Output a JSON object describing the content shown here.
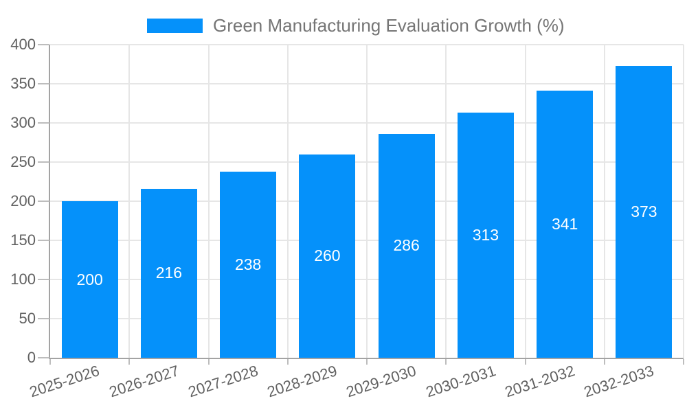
{
  "legend": {
    "label": "Green Manufacturing Evaluation Growth (%)"
  },
  "colors": {
    "background": "#ffffff",
    "bar": "#0591fa",
    "grid": "#e6e6e6",
    "axis": "#a3a3a3",
    "tick": "#bdbdbd",
    "axis_label": "#616161",
    "legend_text": "#757575",
    "value_label": "#ffffff"
  },
  "chart_data": {
    "type": "bar",
    "title": "Green Manufacturing Evaluation Growth (%)",
    "categories": [
      "2025-2026",
      "2026-2027",
      "2027-2028",
      "2028-2029",
      "2029-2030",
      "2030-2031",
      "2031-2032",
      "2032-2033"
    ],
    "values": [
      200,
      216,
      238,
      260,
      286,
      313,
      341,
      373
    ],
    "xlabel": "",
    "ylabel": "",
    "ylim": [
      0,
      400
    ],
    "yticks": [
      0,
      50,
      100,
      150,
      200,
      250,
      300,
      350,
      400
    ],
    "grid": true,
    "legend_position": "top-center",
    "value_labels": "inside-bars-centered",
    "xtick_rotation_deg": -18
  }
}
